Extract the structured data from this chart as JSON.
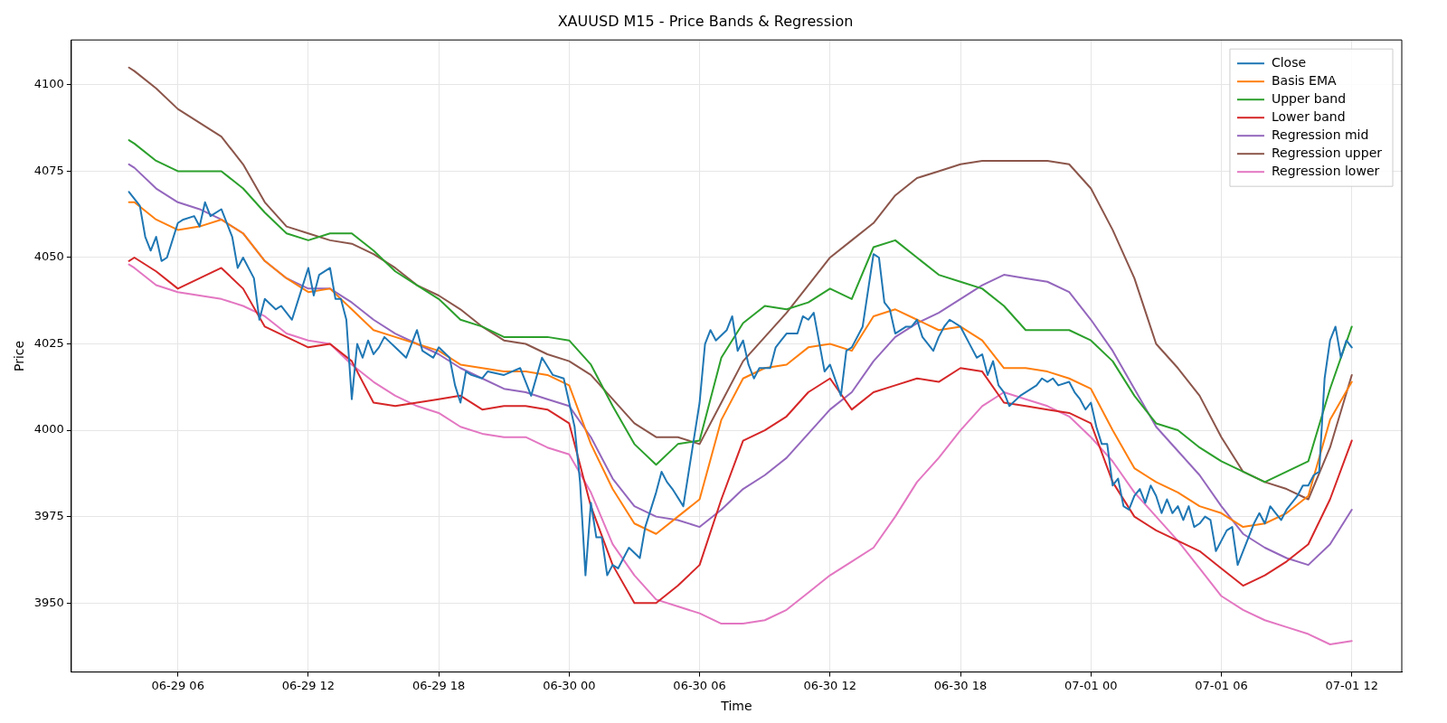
{
  "chart_data": {
    "type": "line",
    "title": "XAUUSD M15 - Price Bands & Regression",
    "xlabel": "Time",
    "ylabel": "Price",
    "x": [
      "--06-29T03:45",
      "--06-29T04:00",
      "--06-29T05:00",
      "--06-29T06:00",
      "--06-29T07:00",
      "--06-29T08:00",
      "--06-29T09:00",
      "--06-29T10:00",
      "--06-29T11:00",
      "--06-29T12:00",
      "--06-29T13:00",
      "--06-29T14:00",
      "--06-29T15:00",
      "--06-29T16:00",
      "--06-29T17:00",
      "--06-29T18:00",
      "--06-29T19:00",
      "--06-29T20:00",
      "--06-29T21:00",
      "--06-29T22:00",
      "--06-29T23:00",
      "--06-30T00:00",
      "--06-30T01:00",
      "--06-30T02:00",
      "--06-30T03:00",
      "--06-30T04:00",
      "--06-30T05:00",
      "--06-30T06:00",
      "--06-30T07:00",
      "--06-30T08:00",
      "--06-30T09:00",
      "--06-30T10:00",
      "--06-30T11:00",
      "--06-30T12:00",
      "--06-30T13:00",
      "--06-30T14:00",
      "--06-30T15:00",
      "--06-30T16:00",
      "--06-30T17:00",
      "--06-30T18:00",
      "--06-30T19:00",
      "--06-30T20:00",
      "--06-30T21:00",
      "--06-30T22:00",
      "--06-30T23:00",
      "--07-01T00:00",
      "--07-01T01:00",
      "--07-01T02:00",
      "--07-01T03:00",
      "--07-01T04:00",
      "--07-01T05:00",
      "--07-01T06:00",
      "--07-01T07:00",
      "--07-01T08:00",
      "--07-01T09:00",
      "--07-01T10:00",
      "--07-01T11:00",
      "--07-01T12:00"
    ],
    "xlim": [
      "--06-29T01:06",
      "--07-01T14:18"
    ],
    "xticks": [
      {
        "value": "--06-29T06:00",
        "label": "06-29 06"
      },
      {
        "value": "--06-29T12:00",
        "label": "06-29 12"
      },
      {
        "value": "--06-29T18:00",
        "label": "06-29 18"
      },
      {
        "value": "--06-30T00:00",
        "label": "06-30 00"
      },
      {
        "value": "--06-30T06:00",
        "label": "06-30 06"
      },
      {
        "value": "--06-30T12:00",
        "label": "06-30 12"
      },
      {
        "value": "--06-30T18:00",
        "label": "06-30 18"
      },
      {
        "value": "--07-01T00:00",
        "label": "07-01 00"
      },
      {
        "value": "--07-01T06:00",
        "label": "07-01 06"
      },
      {
        "value": "--07-01T12:00",
        "label": "07-01 12"
      }
    ],
    "ylim": [
      3930,
      4113
    ],
    "yticks": [
      3950,
      3975,
      4000,
      4025,
      4050,
      4075,
      4100
    ],
    "grid": true,
    "legend": "top right",
    "marker": "none",
    "line_style": "solid",
    "series": [
      {
        "name": "Close",
        "color": "#1f77b4",
        "x": [
          "--06-29T03:45",
          "--06-29T04:15",
          "--06-29T04:30",
          "--06-29T04:45",
          "--06-29T05:00",
          "--06-29T05:15",
          "--06-29T05:30",
          "--06-29T06:00",
          "--06-29T06:15",
          "--06-29T06:45",
          "--06-29T07:00",
          "--06-29T07:15",
          "--06-29T07:30",
          "--06-29T08:00",
          "--06-29T08:30",
          "--06-29T08:45",
          "--06-29T09:00",
          "--06-29T09:30",
          "--06-29T09:45",
          "--06-29T10:00",
          "--06-29T10:30",
          "--06-29T10:45",
          "--06-29T11:15",
          "--06-29T11:30",
          "--06-29T12:00",
          "--06-29T12:15",
          "--06-29T12:30",
          "--06-29T13:00",
          "--06-29T13:15",
          "--06-29T13:30",
          "--06-29T13:45",
          "--06-29T14:00",
          "--06-29T14:15",
          "--06-29T14:30",
          "--06-29T14:45",
          "--06-29T15:00",
          "--06-29T15:15",
          "--06-29T15:30",
          "--06-29T16:00",
          "--06-29T16:30",
          "--06-29T17:00",
          "--06-29T17:15",
          "--06-29T17:45",
          "--06-29T18:00",
          "--06-29T18:30",
          "--06-29T18:45",
          "--06-29T19:00",
          "--06-29T19:15",
          "--06-29T19:30",
          "--06-29T20:00",
          "--06-29T20:15",
          "--06-29T21:00",
          "--06-29T21:45",
          "--06-29T22:15",
          "--06-29T22:45",
          "--06-29T23:15",
          "--06-29T23:45",
          "--06-30T00:00",
          "--06-30T00:15",
          "--06-30T00:30",
          "--06-30T00:45",
          "--06-30T01:00",
          "--06-30T01:15",
          "--06-30T01:30",
          "--06-30T01:45",
          "--06-30T02:00",
          "--06-30T02:15",
          "--06-30T02:45",
          "--06-30T03:15",
          "--06-30T03:30",
          "--06-30T04:00",
          "--06-30T04:15",
          "--06-30T04:30",
          "--06-30T04:45",
          "--06-30T05:15",
          "--06-30T05:30",
          "--06-30T06:00",
          "--06-30T06:15",
          "--06-30T06:30",
          "--06-30T06:45",
          "--06-30T07:15",
          "--06-30T07:30",
          "--06-30T07:45",
          "--06-30T08:00",
          "--06-30T08:15",
          "--06-30T08:30",
          "--06-30T08:45",
          "--06-30T09:15",
          "--06-30T09:30",
          "--06-30T09:45",
          "--06-30T10:00",
          "--06-30T10:30",
          "--06-30T10:45",
          "--06-30T11:00",
          "--06-30T11:15",
          "--06-30T11:45",
          "--06-30T12:00",
          "--06-30T12:30",
          "--06-30T12:45",
          "--06-30T13:00",
          "--06-30T13:30",
          "--06-30T14:00",
          "--06-30T14:15",
          "--06-30T14:30",
          "--06-30T14:45",
          "--06-30T15:00",
          "--06-30T15:30",
          "--06-30T15:45",
          "--06-30T16:00",
          "--06-30T16:15",
          "--06-30T16:45",
          "--06-30T17:00",
          "--06-30T17:15",
          "--06-30T17:30",
          "--06-30T18:00",
          "--06-30T18:30",
          "--06-30T18:45",
          "--06-30T19:00",
          "--06-30T19:15",
          "--06-30T19:30",
          "--06-30T19:45",
          "--06-30T20:00",
          "--06-30T20:15",
          "--06-30T20:45",
          "--06-30T21:30",
          "--06-30T21:45",
          "--06-30T22:00",
          "--06-30T22:15",
          "--06-30T22:30",
          "--06-30T23:00",
          "--06-30T23:15",
          "--06-30T23:30",
          "--06-30T23:45",
          "--07-01T00:00",
          "--07-01T00:15",
          "--07-01T00:30",
          "--07-01T00:45",
          "--07-01T01:00",
          "--07-01T01:15",
          "--07-01T01:30",
          "--07-01T01:45",
          "--07-01T02:00",
          "--07-01T02:15",
          "--07-01T02:30",
          "--07-01T02:45",
          "--07-01T03:00",
          "--07-01T03:15",
          "--07-01T03:30",
          "--07-01T03:45",
          "--07-01T04:00",
          "--07-01T04:15",
          "--07-01T04:30",
          "--07-01T04:45",
          "--07-01T05:00",
          "--07-01T05:15",
          "--07-01T05:30",
          "--07-01T05:45",
          "--07-01T06:00",
          "--07-01T06:15",
          "--07-01T06:30",
          "--07-01T06:45",
          "--07-01T07:00",
          "--07-01T07:30",
          "--07-01T07:45",
          "--07-01T08:00",
          "--07-01T08:15",
          "--07-01T08:30",
          "--07-01T08:45",
          "--07-01T09:00",
          "--07-01T09:30",
          "--07-01T09:45",
          "--07-01T10:00",
          "--07-01T10:15",
          "--07-01T10:30",
          "--07-01T10:45",
          "--07-01T11:00",
          "--07-01T11:15",
          "--07-01T11:30",
          "--07-01T11:45",
          "--07-01T12:00"
        ],
        "values": [
          4069,
          4065,
          4056,
          4052,
          4056,
          4049,
          4050,
          4060,
          4061,
          4062,
          4059,
          4066,
          4062,
          4064,
          4056,
          4047,
          4050,
          4044,
          4032,
          4038,
          4035,
          4036,
          4032,
          4037,
          4047,
          4039,
          4045,
          4047,
          4038,
          4038,
          4032,
          4009,
          4025,
          4021,
          4026,
          4022,
          4024,
          4027,
          4024,
          4021,
          4029,
          4023,
          4021,
          4024,
          4021,
          4013,
          4008,
          4017,
          4016,
          4015,
          4017,
          4016,
          4018,
          4010,
          4021,
          4016,
          4015,
          4008,
          4001,
          3985,
          3958,
          3979,
          3969,
          3969,
          3958,
          3961,
          3960,
          3966,
          3963,
          3972,
          3982,
          3988,
          3985,
          3983,
          3978,
          3988,
          4008,
          4025,
          4029,
          4026,
          4029,
          4033,
          4023,
          4026,
          4019,
          4015,
          4018,
          4018,
          4024,
          4026,
          4028,
          4028,
          4033,
          4032,
          4034,
          4017,
          4019,
          4010,
          4023,
          4024,
          4030,
          4051,
          4050,
          4037,
          4035,
          4028,
          4030,
          4030,
          4032,
          4027,
          4023,
          4027,
          4030,
          4032,
          4030,
          4024,
          4021,
          4022,
          4016,
          4020,
          4013,
          4011,
          4007,
          4010,
          4013,
          4015,
          4014,
          4015,
          4013,
          4014,
          4011,
          4009,
          4006,
          4008,
          4001,
          3996,
          3996,
          3984,
          3986,
          3978,
          3977,
          3981,
          3983,
          3979,
          3984,
          3981,
          3976,
          3980,
          3976,
          3978,
          3974,
          3978,
          3972,
          3973,
          3975,
          3974,
          3965,
          3968,
          3971,
          3972,
          3961,
          3965,
          3973,
          3976,
          3973,
          3978,
          3976,
          3974,
          3977,
          3981,
          3984,
          3984,
          3987,
          3988,
          4015,
          4026,
          4030,
          4021,
          4026,
          4024
        ]
      },
      {
        "name": "Basis EMA",
        "color": "#ff7f0e",
        "values": [
          4066,
          4066,
          4061,
          4058,
          4059,
          4061,
          4057,
          4049,
          4044,
          4040,
          4041,
          4035,
          4029,
          4027,
          4025,
          4023,
          4019,
          4018,
          4017,
          4017,
          4016,
          4013,
          3996,
          3983,
          3973,
          3970,
          3975,
          3980,
          4003,
          4015,
          4018,
          4019,
          4024,
          4025,
          4023,
          4033,
          4035,
          4032,
          4029,
          4030,
          4026,
          4018,
          4018,
          4017,
          4015,
          4012,
          4000,
          3989,
          3985,
          3982,
          3978,
          3976,
          3972,
          3973,
          3976,
          3981,
          4003,
          4014
        ]
      },
      {
        "name": "Upper band",
        "color": "#2ca02c",
        "values": [
          4084,
          4083,
          4078,
          4075,
          4075,
          4075,
          4070,
          4063,
          4057,
          4055,
          4057,
          4057,
          4052,
          4046,
          4042,
          4038,
          4032,
          4030,
          4027,
          4027,
          4027,
          4026,
          4019,
          4007,
          3996,
          3990,
          3996,
          3997,
          4021,
          4031,
          4036,
          4035,
          4037,
          4041,
          4038,
          4053,
          4055,
          4050,
          4045,
          4043,
          4041,
          4036,
          4029,
          4029,
          4029,
          4026,
          4020,
          4010,
          4002,
          4000,
          3995,
          3991,
          3988,
          3985,
          3988,
          3991,
          4012,
          4030
        ]
      },
      {
        "name": "Lower band",
        "color": "#d62728",
        "values": [
          4049,
          4050,
          4046,
          4041,
          4044,
          4047,
          4041,
          4030,
          4027,
          4024,
          4025,
          4020,
          4008,
          4007,
          4008,
          4009,
          4010,
          4006,
          4007,
          4007,
          4006,
          4002,
          3978,
          3961,
          3950,
          3950,
          3955,
          3961,
          3980,
          3997,
          4000,
          4004,
          4011,
          4015,
          4006,
          4011,
          4013,
          4015,
          4014,
          4018,
          4017,
          4008,
          4007,
          4006,
          4005,
          4002,
          3985,
          3975,
          3971,
          3968,
          3965,
          3960,
          3955,
          3958,
          3962,
          3967,
          3980,
          3997
        ]
      },
      {
        "name": "Regression mid",
        "color": "#9467bd",
        "values": [
          4077,
          4076,
          4070,
          4066,
          4064,
          4061,
          4057,
          4049,
          4044,
          4041,
          4041,
          4037,
          4032,
          4028,
          4025,
          4022,
          4018,
          4015,
          4012,
          4011,
          4009,
          4007,
          3998,
          3986,
          3978,
          3975,
          3974,
          3972,
          3977,
          3983,
          3987,
          3992,
          3999,
          4006,
          4011,
          4020,
          4027,
          4031,
          4034,
          4038,
          4042,
          4045,
          4044,
          4043,
          4040,
          4032,
          4023,
          4012,
          4001,
          3994,
          3987,
          3978,
          3970,
          3966,
          3963,
          3961,
          3967,
          3977
        ]
      },
      {
        "name": "Regression upper",
        "color": "#8c564b",
        "values": [
          4105,
          4104,
          4099,
          4093,
          4089,
          4085,
          4077,
          4066,
          4059,
          4057,
          4055,
          4054,
          4051,
          4047,
          4042,
          4039,
          4035,
          4030,
          4026,
          4025,
          4022,
          4020,
          4016,
          4009,
          4002,
          3998,
          3998,
          3996,
          4008,
          4020,
          4027,
          4034,
          4042,
          4050,
          4055,
          4060,
          4068,
          4073,
          4075,
          4077,
          4078,
          4078,
          4078,
          4078,
          4077,
          4070,
          4058,
          4044,
          4025,
          4018,
          4010,
          3998,
          3988,
          3985,
          3983,
          3980,
          3995,
          4016
        ]
      },
      {
        "name": "Regression lower",
        "color": "#e377c2",
        "values": [
          4048,
          4047,
          4042,
          4040,
          4039,
          4038,
          4036,
          4033,
          4028,
          4026,
          4025,
          4019,
          4014,
          4010,
          4007,
          4005,
          4001,
          3999,
          3998,
          3998,
          3995,
          3993,
          3982,
          3967,
          3958,
          3951,
          3949,
          3947,
          3944,
          3944,
          3945,
          3948,
          3953,
          3958,
          3962,
          3966,
          3975,
          3985,
          3992,
          4000,
          4007,
          4011,
          4009,
          4007,
          4004,
          3998,
          3991,
          3982,
          3975,
          3968,
          3960,
          3952,
          3948,
          3945,
          3943,
          3941,
          3938,
          3939
        ]
      }
    ]
  }
}
